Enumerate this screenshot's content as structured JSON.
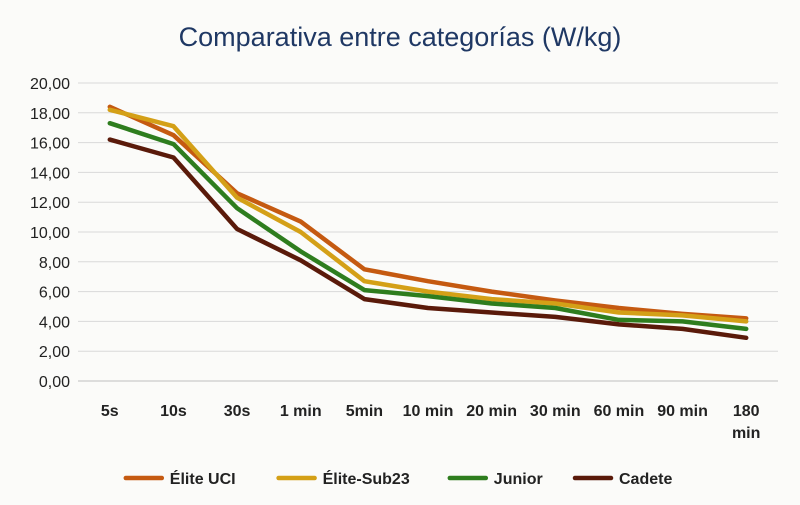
{
  "chart_data": {
    "type": "line",
    "title": "Comparativa entre categorías (W/kg)",
    "xlabel": "",
    "ylabel": "",
    "x": [
      "5s",
      "10s",
      "30s",
      "1 min",
      "5min",
      "10 min",
      "20 min",
      "30 min",
      "60 min",
      "90 min",
      "180 min"
    ],
    "ylim": [
      0,
      20
    ],
    "yticks": [
      "0,00",
      "2,00",
      "4,00",
      "6,00",
      "8,00",
      "10,00",
      "12,00",
      "14,00",
      "16,00",
      "18,00",
      "20,00"
    ],
    "grid": true,
    "legend": "bottom",
    "series": [
      {
        "name": "Élite UCI",
        "color": "#c55a11",
        "values": [
          18.4,
          16.5,
          12.6,
          10.7,
          7.5,
          6.7,
          6.0,
          5.4,
          4.9,
          4.5,
          4.2
        ]
      },
      {
        "name": "Élite-Sub23",
        "color": "#d4a017",
        "values": [
          18.2,
          17.1,
          12.3,
          10.0,
          6.7,
          6.0,
          5.5,
          5.2,
          4.6,
          4.4,
          4.0
        ]
      },
      {
        "name": "Junior",
        "color": "#2e7d1e",
        "values": [
          17.3,
          15.9,
          11.6,
          8.7,
          6.1,
          5.7,
          5.2,
          4.9,
          4.1,
          4.0,
          3.5
        ]
      },
      {
        "name": "Cadete",
        "color": "#5a1a0a",
        "values": [
          16.2,
          15.0,
          10.2,
          8.1,
          5.5,
          4.9,
          4.6,
          4.3,
          3.8,
          3.5,
          2.9
        ]
      }
    ]
  }
}
